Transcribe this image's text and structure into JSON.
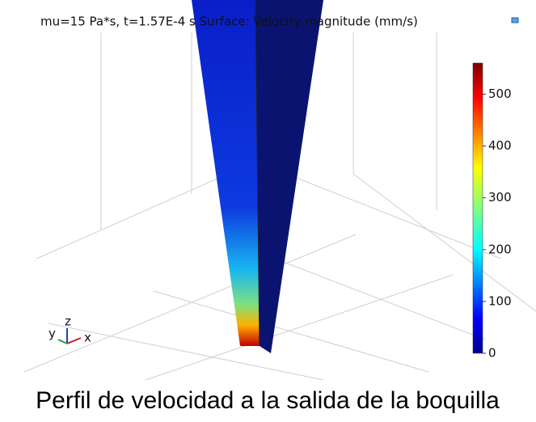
{
  "plot": {
    "title": "mu=15 Pa*s, t=1.57E-4 s  Surface: Velocity magnitude (mm/s)",
    "colorbar": {
      "range": [
        0,
        560
      ],
      "ticks": [
        0,
        100,
        200,
        300,
        400,
        500
      ]
    },
    "axes_triad": {
      "y": "y",
      "z": "z",
      "x": "x"
    }
  },
  "caption": "Perfil de velocidad a la salida de la boquilla"
}
